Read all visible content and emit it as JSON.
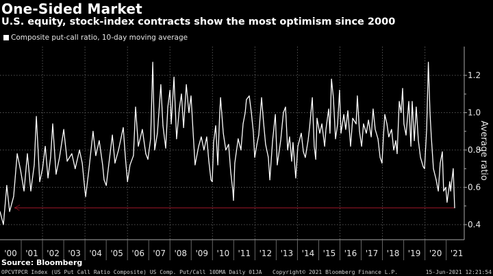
{
  "header": {
    "title": "One-Sided Market",
    "subtitle": "U.S. equity, stock-index contracts show the most optimism since 2000"
  },
  "source": "Source: Bloomberg",
  "footer": {
    "left": "OPCVTPCR Index (US Put Call Ratio Composite) US Comp. Put/Call 10DMA  Daily 01JA",
    "center": "Copyright© 2021 Bloomberg Finance L.P.",
    "right": "15-Jun-2021 12:21:54"
  },
  "colors": {
    "background": "#000000",
    "series": "#ffffff",
    "reference_line": "#e0203a",
    "grid": "#555555"
  },
  "chart_data": {
    "type": "line",
    "title": "One-Sided Market",
    "subtitle": "U.S. equity, stock-index contracts show the most optimism since 2000",
    "ylabel": "Average ratio",
    "xlabel": "",
    "ylim": [
      0.4,
      1.3
    ],
    "xlim": [
      2000,
      2021.85
    ],
    "y_ticks": [
      "0.4",
      "0.6",
      "0.8",
      "1.0",
      "1.2"
    ],
    "y_axis_side": "right",
    "x_tick_labels": [
      "'00",
      "'01",
      "'02",
      "'03",
      "'04",
      "'05",
      "'06",
      "'07",
      "'08",
      "'09",
      "'10",
      "'11",
      "'12",
      "'13",
      "'14",
      "'15",
      "'16",
      "'17",
      "'18",
      "'19",
      "'20",
      "'21"
    ],
    "grid": true,
    "legend": "top-left",
    "series": [
      {
        "name": "Composite put-call ratio, 10-day moving average",
        "points": [
          [
            2000.0,
            0.47
          ],
          [
            2000.16,
            0.4
          ],
          [
            2000.32,
            0.61
          ],
          [
            2000.45,
            0.47
          ],
          [
            2000.64,
            0.55
          ],
          [
            2000.81,
            0.78
          ],
          [
            2000.97,
            0.69
          ],
          [
            2001.13,
            0.58
          ],
          [
            2001.29,
            0.78
          ],
          [
            2001.45,
            0.58
          ],
          [
            2001.61,
            0.72
          ],
          [
            2001.71,
            0.98
          ],
          [
            2001.87,
            0.63
          ],
          [
            2002.0,
            0.7
          ],
          [
            2002.13,
            0.82
          ],
          [
            2002.26,
            0.65
          ],
          [
            2002.38,
            0.76
          ],
          [
            2002.48,
            0.94
          ],
          [
            2002.64,
            0.67
          ],
          [
            2002.8,
            0.76
          ],
          [
            2003.0,
            0.91
          ],
          [
            2003.16,
            0.74
          ],
          [
            2003.38,
            0.78
          ],
          [
            2003.54,
            0.7
          ],
          [
            2003.74,
            0.8
          ],
          [
            2003.87,
            0.73
          ],
          [
            2004.0,
            0.58
          ],
          [
            2004.03,
            0.55
          ],
          [
            2004.19,
            0.7
          ],
          [
            2004.38,
            0.9
          ],
          [
            2004.51,
            0.77
          ],
          [
            2004.67,
            0.85
          ],
          [
            2004.83,
            0.72
          ],
          [
            2004.9,
            0.64
          ],
          [
            2005.0,
            0.61
          ],
          [
            2005.16,
            0.76
          ],
          [
            2005.29,
            0.88
          ],
          [
            2005.41,
            0.73
          ],
          [
            2005.58,
            0.8
          ],
          [
            2005.8,
            0.92
          ],
          [
            2005.9,
            0.76
          ],
          [
            2006.0,
            0.63
          ],
          [
            2006.12,
            0.72
          ],
          [
            2006.28,
            0.77
          ],
          [
            2006.38,
            1.03
          ],
          [
            2006.51,
            0.82
          ],
          [
            2006.7,
            0.91
          ],
          [
            2006.86,
            0.78
          ],
          [
            2006.96,
            0.75
          ],
          [
            2007.09,
            0.86
          ],
          [
            2007.19,
            1.27
          ],
          [
            2007.28,
            0.8
          ],
          [
            2007.41,
            0.89
          ],
          [
            2007.57,
            1.15
          ],
          [
            2007.67,
            0.93
          ],
          [
            2007.8,
            0.81
          ],
          [
            2007.9,
            1.03
          ],
          [
            2008.0,
            1.12
          ],
          [
            2008.06,
            0.94
          ],
          [
            2008.19,
            1.19
          ],
          [
            2008.31,
            0.86
          ],
          [
            2008.44,
            1.02
          ],
          [
            2008.54,
            1.1
          ],
          [
            2008.64,
            0.92
          ],
          [
            2008.77,
            1.15
          ],
          [
            2008.89,
            1.0
          ],
          [
            2008.99,
            1.09
          ],
          [
            2009.09,
            0.89
          ],
          [
            2009.18,
            0.72
          ],
          [
            2009.35,
            0.82
          ],
          [
            2009.47,
            0.87
          ],
          [
            2009.6,
            0.8
          ],
          [
            2009.73,
            0.87
          ],
          [
            2009.83,
            0.74
          ],
          [
            2009.93,
            0.64
          ],
          [
            2009.99,
            0.63
          ],
          [
            2010.05,
            0.84
          ],
          [
            2010.15,
            0.93
          ],
          [
            2010.25,
            0.72
          ],
          [
            2010.34,
            1.0
          ],
          [
            2010.38,
            1.08
          ],
          [
            2010.51,
            0.89
          ],
          [
            2010.63,
            0.8
          ],
          [
            2010.76,
            0.83
          ],
          [
            2010.86,
            0.68
          ],
          [
            2010.96,
            0.58
          ],
          [
            2010.99,
            0.53
          ],
          [
            2011.05,
            0.73
          ],
          [
            2011.21,
            0.86
          ],
          [
            2011.34,
            0.8
          ],
          [
            2011.44,
            0.94
          ],
          [
            2011.54,
            1.0
          ],
          [
            2011.6,
            1.07
          ],
          [
            2011.73,
            1.09
          ],
          [
            2011.83,
            1.0
          ],
          [
            2011.92,
            0.9
          ],
          [
            2011.99,
            0.76
          ],
          [
            2012.09,
            0.83
          ],
          [
            2012.18,
            0.88
          ],
          [
            2012.31,
            1.08
          ],
          [
            2012.41,
            0.94
          ],
          [
            2012.5,
            0.83
          ],
          [
            2012.63,
            0.76
          ],
          [
            2012.7,
            0.64
          ],
          [
            2012.83,
            0.85
          ],
          [
            2012.96,
            0.99
          ],
          [
            2013.05,
            0.72
          ],
          [
            2013.21,
            0.85
          ],
          [
            2013.34,
            1.0
          ],
          [
            2013.44,
            1.03
          ],
          [
            2013.54,
            0.8
          ],
          [
            2013.63,
            0.87
          ],
          [
            2013.73,
            0.74
          ],
          [
            2013.79,
            0.84
          ],
          [
            2013.92,
            0.65
          ],
          [
            2014.02,
            0.82
          ],
          [
            2014.18,
            0.89
          ],
          [
            2014.28,
            0.79
          ],
          [
            2014.37,
            0.76
          ],
          [
            2014.5,
            0.85
          ],
          [
            2014.57,
            0.92
          ],
          [
            2014.7,
            1.08
          ],
          [
            2014.79,
            0.82
          ],
          [
            2014.86,
            0.75
          ],
          [
            2014.92,
            0.97
          ],
          [
            2015.05,
            0.89
          ],
          [
            2015.15,
            0.94
          ],
          [
            2015.28,
            0.82
          ],
          [
            2015.34,
            0.91
          ],
          [
            2015.47,
            1.02
          ],
          [
            2015.53,
            0.89
          ],
          [
            2015.6,
            1.18
          ],
          [
            2015.69,
            1.08
          ],
          [
            2015.79,
            0.86
          ],
          [
            2015.89,
            0.94
          ],
          [
            2015.98,
            1.12
          ],
          [
            2016.05,
            0.89
          ],
          [
            2016.18,
            0.99
          ],
          [
            2016.27,
            0.91
          ],
          [
            2016.37,
            1.01
          ],
          [
            2016.5,
            0.82
          ],
          [
            2016.6,
            0.97
          ],
          [
            2016.76,
            0.94
          ],
          [
            2016.82,
            1.09
          ],
          [
            2016.92,
            0.9
          ],
          [
            2017.02,
            0.82
          ],
          [
            2017.11,
            0.94
          ],
          [
            2017.24,
            0.89
          ],
          [
            2017.34,
            0.96
          ],
          [
            2017.47,
            0.87
          ],
          [
            2017.56,
            1.02
          ],
          [
            2017.66,
            0.91
          ],
          [
            2017.79,
            0.86
          ],
          [
            2017.89,
            0.76
          ],
          [
            2017.98,
            0.73
          ],
          [
            2018.05,
            0.88
          ],
          [
            2018.11,
            0.99
          ],
          [
            2018.21,
            0.94
          ],
          [
            2018.3,
            0.87
          ],
          [
            2018.43,
            0.91
          ],
          [
            2018.53,
            0.8
          ],
          [
            2018.63,
            0.85
          ],
          [
            2018.69,
            0.78
          ],
          [
            2018.79,
            1.06
          ],
          [
            2018.88,
            1.0
          ],
          [
            2018.95,
            1.13
          ],
          [
            2019.01,
            0.94
          ],
          [
            2019.11,
            0.88
          ],
          [
            2019.24,
            1.06
          ],
          [
            2019.34,
            0.82
          ],
          [
            2019.4,
            1.06
          ],
          [
            2019.5,
            0.85
          ],
          [
            2019.59,
            1.03
          ],
          [
            2019.69,
            0.85
          ],
          [
            2019.79,
            0.76
          ],
          [
            2019.92,
            0.71
          ],
          [
            2019.98,
            0.7
          ],
          [
            2020.08,
            0.91
          ],
          [
            2020.16,
            1.27
          ],
          [
            2020.24,
            1.0
          ],
          [
            2020.3,
            0.87
          ],
          [
            2020.4,
            0.7
          ],
          [
            2020.53,
            0.64
          ],
          [
            2020.63,
            0.58
          ],
          [
            2020.72,
            0.73
          ],
          [
            2020.82,
            0.79
          ],
          [
            2020.88,
            0.58
          ],
          [
            2020.98,
            0.6
          ],
          [
            2021.04,
            0.52
          ],
          [
            2021.17,
            0.63
          ],
          [
            2021.21,
            0.58
          ],
          [
            2021.33,
            0.7
          ],
          [
            2021.4,
            0.49
          ]
        ]
      }
    ],
    "reference_line": {
      "value": 0.49,
      "from": 2000.7,
      "to": 2021.4,
      "style": "dotted",
      "arrow": "left"
    }
  }
}
